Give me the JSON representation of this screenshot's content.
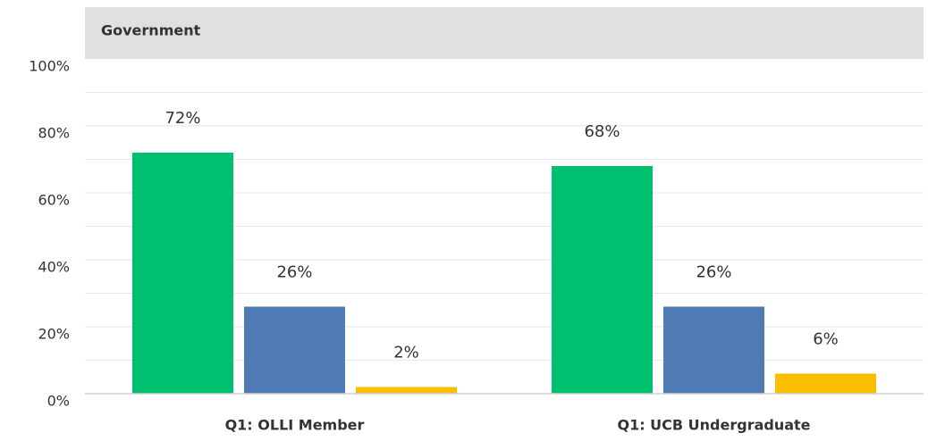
{
  "chart_data": {
    "type": "bar",
    "title": "Government",
    "categories": [
      "Q1: OLLI Member",
      "Q1: UCB Undergraduate"
    ],
    "series": [
      {
        "color": "#00bf6f",
        "values": [
          72,
          68
        ],
        "value_labels": [
          "72%",
          "68%"
        ]
      },
      {
        "color": "#507cb6",
        "values": [
          26,
          26
        ],
        "value_labels": [
          "26%",
          "26%"
        ]
      },
      {
        "color": "#f9be00",
        "values": [
          2,
          6
        ],
        "value_labels": [
          "2%",
          "6%"
        ]
      }
    ],
    "ylim": [
      0,
      100
    ],
    "yticks": [
      {
        "value": 0,
        "label": "0%"
      },
      {
        "value": 20,
        "label": "20%"
      },
      {
        "value": 40,
        "label": "40%"
      },
      {
        "value": 60,
        "label": "60%"
      },
      {
        "value": 80,
        "label": "80%"
      },
      {
        "value": 100,
        "label": "100%"
      }
    ],
    "yminorticks": [
      10,
      30,
      50,
      70,
      90
    ],
    "grid": true
  }
}
